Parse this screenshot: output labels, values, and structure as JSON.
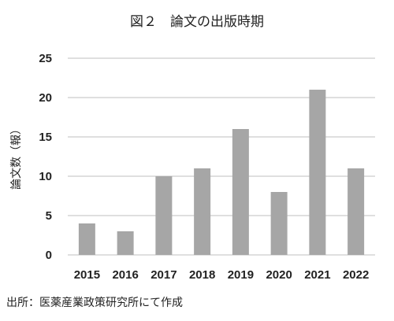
{
  "chart_data": {
    "type": "bar",
    "title": "図２　論文の出版時期",
    "categories": [
      "2015",
      "2016",
      "2017",
      "2018",
      "2019",
      "2020",
      "2021",
      "2022"
    ],
    "values": [
      4,
      3,
      10,
      11,
      16,
      8,
      21,
      11
    ],
    "ylabel": "論文数（報）",
    "xlabel": "",
    "ylim": [
      0,
      25
    ],
    "yticks": [
      "0",
      "5",
      "10",
      "15",
      "20",
      "25"
    ],
    "grid": true,
    "bar_color": "#a6a6a6",
    "grid_color": "#bfbfbf"
  },
  "source_note": "出所：医薬産業政策研究所にて作成"
}
